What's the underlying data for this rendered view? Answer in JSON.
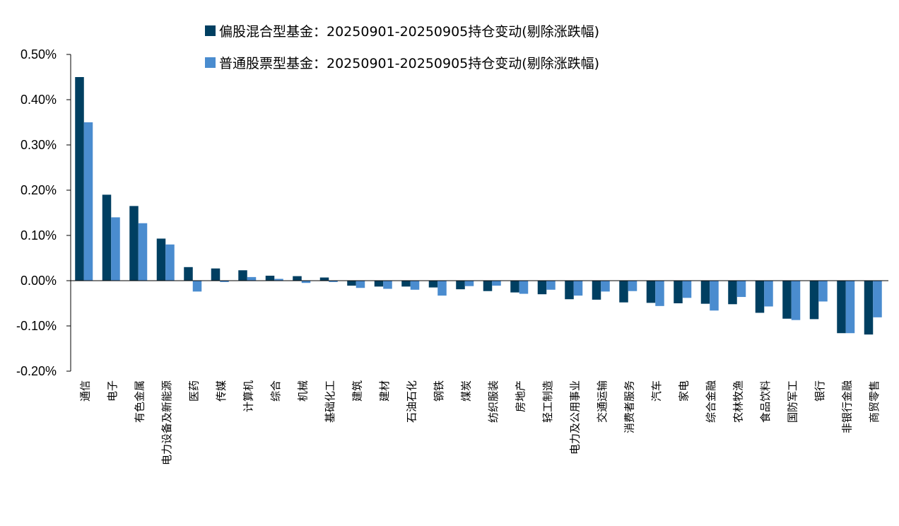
{
  "chart_data": {
    "type": "bar",
    "categories": [
      "通信",
      "电子",
      "有色金属",
      "电力设备及新能源",
      "医药",
      "传媒",
      "计算机",
      "综合",
      "机械",
      "基础化工",
      "建筑",
      "建材",
      "石油石化",
      "钢铁",
      "煤炭",
      "纺织服装",
      "房地产",
      "轻工制造",
      "电力及公用事业",
      "交通运输",
      "消费者服务",
      "汽车",
      "家电",
      "综合金融",
      "农林牧渔",
      "食品饮料",
      "国防军工",
      "银行",
      "非银行金融",
      "商贸零售"
    ],
    "series": [
      {
        "name": "偏股混合型基金：20250901-20250905持仓变动(剔除涨跌幅)",
        "color": "#003f61",
        "values": [
          0.45,
          0.19,
          0.165,
          0.093,
          0.03,
          0.027,
          0.023,
          0.011,
          0.01,
          0.007,
          -0.011,
          -0.013,
          -0.013,
          -0.015,
          -0.019,
          -0.023,
          -0.026,
          -0.03,
          -0.041,
          -0.042,
          -0.048,
          -0.049,
          -0.05,
          -0.051,
          -0.052,
          -0.071,
          -0.084,
          -0.085,
          -0.116,
          -0.119
        ]
      },
      {
        "name": "普通股票型基金：20250901-20250905持仓变动(剔除涨跌幅)",
        "color": "#4a8ccf",
        "values": [
          0.35,
          0.14,
          0.127,
          0.08,
          -0.024,
          -0.003,
          0.008,
          0.004,
          -0.005,
          -0.003,
          -0.016,
          -0.018,
          -0.02,
          -0.033,
          -0.012,
          -0.011,
          -0.029,
          -0.02,
          -0.033,
          -0.024,
          -0.023,
          -0.056,
          -0.038,
          -0.066,
          -0.036,
          -0.057,
          -0.087,
          -0.046,
          -0.116,
          -0.081
        ]
      }
    ],
    "y_ticks": [
      "0.50%",
      "0.40%",
      "0.30%",
      "0.20%",
      "0.10%",
      "0.00%",
      "-0.10%",
      "-0.20%"
    ],
    "y_tick_values": [
      0.5,
      0.4,
      0.3,
      0.2,
      0.1,
      0.0,
      -0.1,
      -0.2
    ],
    "ylim": [
      -0.2,
      0.5
    ],
    "grid": false,
    "legend_position": "top-center",
    "title": "",
    "xlabel": "",
    "ylabel": ""
  }
}
